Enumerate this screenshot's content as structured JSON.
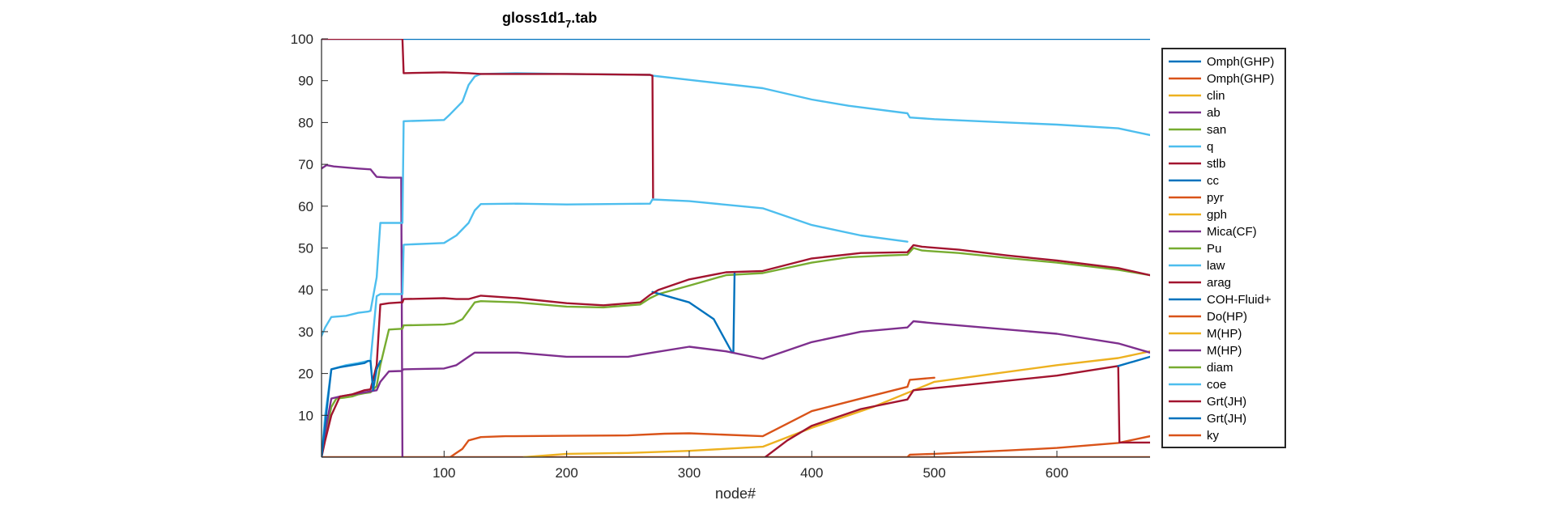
{
  "chart_data": {
    "type": "line",
    "title": "gloss1d1",
    "title_subscript": "7",
    "title_suffix": ".tab",
    "xlabel": "node#",
    "ylabel": "",
    "xlim": [
      0,
      676
    ],
    "ylim": [
      0,
      100
    ],
    "xticks": [
      100,
      200,
      300,
      400,
      500,
      600
    ],
    "yticks": [
      10,
      20,
      30,
      40,
      50,
      60,
      70,
      80,
      90,
      100
    ],
    "grid": false,
    "legend_position": "right",
    "series": [
      {
        "name": "Omph(GHP)",
        "color": "#0072bd",
        "x": [
          0,
          676
        ],
        "y": [
          100,
          100
        ]
      },
      {
        "name": "Omph(GHP)",
        "color": "#d95319",
        "x": [
          0,
          4,
          8,
          676
        ],
        "y": [
          0,
          0,
          0,
          0
        ]
      },
      {
        "name": "clin",
        "color": "#edb120",
        "x": [
          165,
          200,
          250,
          300,
          360,
          400,
          450,
          500,
          550,
          600,
          650,
          676
        ],
        "y": [
          0,
          0.8,
          1.0,
          1.5,
          2.5,
          7,
          12,
          18,
          20,
          22,
          23.7,
          25.3
        ]
      },
      {
        "name": "ab",
        "color": "#7e2f8e",
        "x": [
          0,
          4,
          10,
          30,
          40,
          45,
          55,
          65,
          66
        ],
        "y": [
          69,
          69.8,
          69.5,
          69,
          68.8,
          67,
          66.8,
          66.8,
          0
        ]
      },
      {
        "name": "san",
        "color": "#77ac30",
        "x": [
          0,
          3,
          5,
          8,
          12,
          18,
          25,
          30,
          35,
          40,
          45,
          48,
          55,
          60,
          66,
          67,
          100,
          108,
          115,
          120,
          125,
          130,
          160,
          200,
          230,
          260,
          268,
          275,
          300,
          330,
          360,
          400,
          430,
          460,
          478,
          483,
          490,
          520,
          560,
          600,
          650,
          676
        ],
        "y": [
          0,
          5,
          8,
          12,
          14,
          14.2,
          14.5,
          15,
          15.3,
          15.5,
          17,
          22,
          30.5,
          30.6,
          30.7,
          31.5,
          31.7,
          32,
          33,
          35,
          37,
          37.3,
          37,
          36,
          35.8,
          36.5,
          38,
          39,
          41,
          43.5,
          44,
          46.5,
          47.8,
          48.2,
          48.4,
          50,
          49.4,
          48.8,
          47.6,
          46.5,
          44.8,
          43.5
        ]
      },
      {
        "name": "q",
        "color": "#4dbeee",
        "x": [
          0,
          3,
          8,
          20,
          30,
          38,
          40,
          45,
          48,
          55,
          65,
          66,
          67,
          100,
          105,
          115,
          120,
          125,
          130,
          160,
          200,
          268,
          270,
          300,
          360,
          400,
          430,
          478,
          480,
          500,
          560,
          600,
          650,
          676
        ],
        "y": [
          29,
          31,
          33.5,
          33.8,
          34.5,
          34.8,
          35,
          43,
          56,
          56,
          56,
          56,
          80.3,
          80.6,
          82,
          85,
          89,
          91,
          91.6,
          91.8,
          91.6,
          91.4,
          91.2,
          90.2,
          88.2,
          85.5,
          84,
          82.2,
          81.2,
          80.8,
          80,
          79.5,
          78.6,
          77
        ]
      },
      {
        "name": "stlb",
        "color": "#a2142f",
        "x": [
          0,
          65,
          66,
          67,
          100,
          120,
          130,
          160,
          200,
          268,
          270,
          270.5
        ],
        "y": [
          100,
          100,
          100,
          91.8,
          92,
          91.8,
          91.6,
          91.6,
          91.6,
          91.4,
          91.2,
          62
        ]
      },
      {
        "name": "cc",
        "color": "#0072bd",
        "x": [
          270,
          300,
          320,
          335,
          336,
          337
        ],
        "y": [
          39.5,
          37,
          33,
          25,
          25,
          44
        ]
      },
      {
        "name": "pyr",
        "color": "#d95319",
        "x": [
          105,
          110,
          115,
          120,
          130,
          150,
          200,
          250,
          280,
          300,
          360,
          380,
          400,
          440,
          478,
          480,
          500
        ],
        "y": [
          0,
          1,
          2,
          4,
          4.8,
          5,
          5.1,
          5.2,
          5.6,
          5.7,
          5,
          8,
          11,
          14,
          16.8,
          18.5,
          19
        ]
      },
      {
        "name": "gph",
        "color": "#edb120",
        "x": [
          0
        ],
        "y": [
          0
        ]
      },
      {
        "name": "Mica(CF)",
        "color": "#7e2f8e",
        "x": [
          0,
          3,
          8,
          15,
          25,
          35,
          45,
          48,
          55,
          65,
          67,
          100,
          110,
          120,
          125,
          160,
          200,
          250,
          270,
          300,
          330,
          360,
          400,
          440,
          478,
          483,
          500,
          560,
          600,
          650,
          676
        ],
        "y": [
          0,
          6,
          14,
          14.5,
          15,
          15.5,
          16,
          18,
          20.5,
          20.6,
          21,
          21.2,
          22,
          24,
          25,
          25,
          24,
          24,
          25,
          26.4,
          25.3,
          23.5,
          27.5,
          30,
          31,
          32.5,
          32,
          30.5,
          29.5,
          27.2,
          25
        ]
      },
      {
        "name": "Pu",
        "color": "#77ac30",
        "x": [
          0
        ],
        "y": [
          0
        ]
      },
      {
        "name": "law",
        "color": "#4dbeee",
        "x": [
          0,
          3,
          8,
          20,
          30,
          38,
          40,
          45,
          48,
          55,
          60,
          65,
          66,
          67,
          100,
          110,
          120,
          125,
          130,
          160,
          200,
          268,
          270,
          300,
          360,
          400,
          440,
          478
        ],
        "y": [
          0,
          10,
          21,
          22,
          22.5,
          23,
          23,
          38.5,
          39,
          39,
          39,
          39,
          39,
          50.8,
          51.2,
          53,
          56,
          59,
          60.5,
          60.6,
          60.4,
          60.6,
          61.6,
          61.2,
          59.5,
          55.5,
          53,
          51.5
        ]
      },
      {
        "name": "arag",
        "color": "#a2142f",
        "x": [
          0,
          3,
          8,
          15,
          25,
          35,
          40,
          45,
          48,
          55,
          65,
          66,
          67,
          100,
          110,
          120,
          130,
          160,
          200,
          230,
          260,
          268,
          275,
          300,
          330,
          360,
          400,
          440,
          478,
          483,
          490,
          520,
          560,
          600,
          650,
          676
        ],
        "y": [
          0,
          4,
          10,
          14.5,
          15,
          16,
          16.2,
          22,
          36.5,
          36.8,
          37,
          37,
          37.8,
          38,
          37.8,
          37.8,
          38.6,
          38,
          36.8,
          36.3,
          37,
          38.8,
          40,
          42.5,
          44.2,
          44.5,
          47.5,
          48.8,
          49,
          50.7,
          50.3,
          49.6,
          48.2,
          47,
          45.2,
          43.5
        ]
      },
      {
        "name": "COH-Fluid+",
        "color": "#0072bd",
        "x": [
          0,
          3,
          8,
          15,
          25,
          35,
          38,
          40,
          42,
          45,
          48
        ],
        "y": [
          0,
          8,
          21,
          21.5,
          22,
          22.5,
          23,
          23,
          16,
          21,
          23
        ]
      },
      {
        "name": "Do(HP)",
        "color": "#d95319",
        "x": [
          478,
          480,
          500,
          560,
          600,
          650,
          676
        ],
        "y": [
          0,
          0.6,
          0.8,
          1.6,
          2.2,
          3.4,
          5
        ]
      },
      {
        "name": "M(HP)",
        "color": "#edb120",
        "x": [
          0
        ],
        "y": [
          0
        ]
      },
      {
        "name": "M(HP)",
        "color": "#7e2f8e",
        "x": [
          0
        ],
        "y": [
          0
        ]
      },
      {
        "name": "diam",
        "color": "#77ac30",
        "x": [
          0
        ],
        "y": [
          0
        ]
      },
      {
        "name": "coe",
        "color": "#4dbeee",
        "x": [
          0
        ],
        "y": [
          0
        ]
      },
      {
        "name": "Grt(JH)",
        "color": "#a2142f",
        "x": [
          362,
          380,
          400,
          440,
          478,
          483,
          500,
          560,
          600,
          650,
          651,
          676
        ],
        "y": [
          0,
          4,
          7.5,
          11.5,
          13.8,
          16,
          16.5,
          18.3,
          19.5,
          21.8,
          3.5,
          3.5
        ]
      },
      {
        "name": "Grt(JH)",
        "color": "#0072bd",
        "x": [
          650,
          676
        ],
        "y": [
          21.8,
          24
        ]
      },
      {
        "name": "ky",
        "color": "#d95319",
        "x": [
          0
        ],
        "y": [
          0
        ]
      }
    ]
  }
}
